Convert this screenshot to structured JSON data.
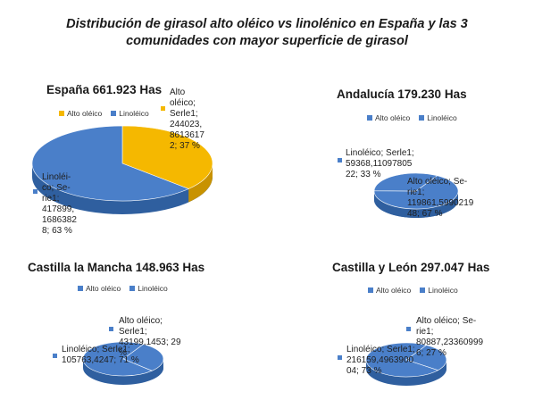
{
  "title": "Distribución de girasol alto oléico vs linolénico en España y las 3 comunidades con mayor superficie de girasol",
  "colors": {
    "alto": "#f5b800",
    "alto_side": "#c89200",
    "lino": "#4a7fc9",
    "lino_side": "#2f5f9f"
  },
  "chart_data": [
    {
      "type": "pie",
      "title": "España  661.923 Has",
      "legend": [
        "Alto oléico",
        "Linoléico"
      ],
      "legend_position": "top",
      "slices": [
        {
          "name": "Alto oléico",
          "value": 244023.86136172,
          "percent": 37,
          "label": "Alto oléico; Serle1; 244023, 8613617 2; 37 %"
        },
        {
          "name": "Linoléico",
          "value": 417899.16863828,
          "percent": 63,
          "label": "Linoléi- co; Se- rie1; 417899, 1686382 8; 63 %"
        }
      ]
    },
    {
      "type": "pie",
      "title": "Andalucía   179.230 Has",
      "legend": [
        "Alto oléico",
        "Linoléico"
      ],
      "legend_position": "top",
      "slices": [
        {
          "name": "Alto oléico",
          "value": 119861.599021948,
          "percent": 67,
          "label": "Alto oléico; Se- rie1; 119861,5990219 48; 67 %"
        },
        {
          "name": "Linoléico",
          "value": 59368.1109780522,
          "percent": 33,
          "label": "Linoléico; Serle1; 59368,11097805 22; 33 %"
        }
      ]
    },
    {
      "type": "pie",
      "title": "Castilla la Mancha    148.963 Has",
      "legend": [
        "Alto oléico",
        "Linoléico"
      ],
      "legend_position": "top",
      "slices": [
        {
          "name": "Alto oléico",
          "value": 43199.1453,
          "percent": 29,
          "label": "Alto oléico; Serle1; 43199,1453; 29 %"
        },
        {
          "name": "Linoléico",
          "value": 105763.4247,
          "percent": 71,
          "label": "Linoléico; Serle1; 105763,4247; 71 %"
        }
      ]
    },
    {
      "type": "pie",
      "title": "Castilla y León  297.047 Has",
      "legend": [
        "Alto oléico",
        "Linoléico"
      ],
      "legend_position": "top",
      "slices": [
        {
          "name": "Alto oléico",
          "value": 80887.233609996,
          "percent": 27,
          "label": "Alto oléico; Se- rie1; 80887,23360999 6; 27 %"
        },
        {
          "name": "Linoléico",
          "value": 216159.496390004,
          "percent": 73,
          "label": "Linoléico; Serle1; 216159,4963900 04; 73 %"
        }
      ]
    }
  ]
}
